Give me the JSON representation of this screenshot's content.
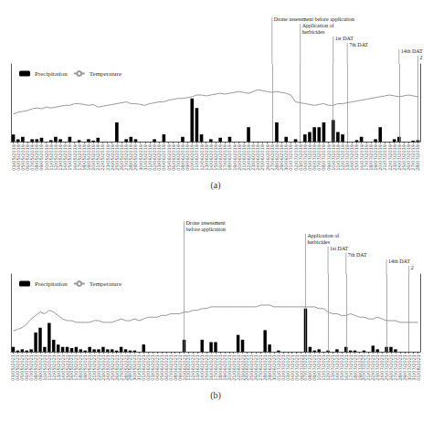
{
  "chart_data": [
    {
      "type": "bar",
      "xlabel": "(a)",
      "legend": "upper left",
      "grid": false,
      "tick_labels": "x",
      "ylim": [
        0,
        16.2
      ],
      "y2lim": [
        -5,
        40
      ],
      "categories": [
        "03/05/2019",
        "04/05/2019",
        "05/05/2019",
        "06/05/2019",
        "07/05/2019",
        "08/05/2019",
        "09/05/2019",
        "10/05/2019",
        "11/05/2019",
        "12/05/2019",
        "13/05/2019",
        "14/05/2019",
        "15/05/2019",
        "16/05/2019",
        "17/05/2019",
        "18/05/2019",
        "19/05/2019",
        "20/05/2019",
        "21/05/2019",
        "22/05/2019",
        "23/05/2019",
        "24/05/2019",
        "25/05/2019",
        "26/05/2019",
        "27/05/2019",
        "28/05/2019",
        "29/05/2019",
        "30/05/2019",
        "31/05/2019",
        "01/06/2019",
        "02/06/2019",
        "03/06/2019",
        "04/06/2019",
        "05/06/2019",
        "06/06/2019",
        "07/06/2019",
        "08/06/2019",
        "09/06/2019",
        "10/06/2019",
        "11/06/2019",
        "12/06/2019",
        "13/06/2019",
        "14/06/2019",
        "15/06/2019",
        "16/06/2019",
        "17/06/2019",
        "18/06/2019",
        "19/06/2019",
        "20/06/2019",
        "21/06/2019",
        "22/06/2019",
        "23/06/2019",
        "24/06/2019",
        "25/06/2019",
        "26/06/2019",
        "27/06/2019",
        "28/06/2019",
        "29/06/2019",
        "30/06/2019",
        "01/07/2019",
        "02/07/2019",
        "03/07/2019",
        "04/07/2019",
        "05/07/2019",
        "06/07/2019",
        "07/07/2019",
        "08/07/2019",
        "09/07/2019",
        "10/07/2019",
        "11/07/2019",
        "12/07/2019",
        "13/07/2019",
        "14/07/2019",
        "15/07/2019",
        "16/07/2019",
        "17/07/2019",
        "18/07/2019",
        "19/07/2019",
        "20/07/2019",
        "21/07/2019",
        "22/07/2019",
        "23/07/2019",
        "24/07/2019",
        "25/07/2019",
        "26/07/2019",
        "27/07/2019",
        "28/07/2019"
      ],
      "series": [
        {
          "name": "Precipitation",
          "type": "bar",
          "color": "#000000",
          "values": [
            1.5,
            0.5,
            1,
            0,
            0.5,
            0.5,
            0.8,
            0,
            0.3,
            1,
            0.5,
            0,
            1,
            0,
            0.3,
            0,
            0.5,
            0.2,
            0.8,
            0,
            0,
            0,
            4,
            0,
            0.5,
            1,
            0.5,
            0,
            0,
            0,
            0.5,
            0,
            1.5,
            0,
            0,
            0,
            1,
            0,
            9,
            7,
            1.5,
            0,
            0.5,
            0,
            0.8,
            0,
            1,
            0,
            0,
            0,
            3,
            0,
            0,
            0,
            0,
            0,
            4,
            0,
            1,
            0,
            0.5,
            0,
            1.5,
            2,
            3,
            3,
            4,
            0,
            4.5,
            2,
            1.5,
            0,
            0,
            0.3,
            1,
            0,
            0,
            0.5,
            3,
            0,
            0,
            0.5,
            1,
            0,
            0,
            0.2,
            0.3
          ]
        },
        {
          "name": "Temperature",
          "type": "line",
          "color": "#999999",
          "axis": "y2",
          "values": [
            11,
            12,
            12.5,
            13,
            14,
            14.5,
            14,
            15,
            14.5,
            15,
            15.5,
            16,
            16,
            17,
            17,
            16.5,
            16,
            16.5,
            15,
            15.5,
            16,
            16.5,
            17,
            17.5,
            18,
            17,
            17,
            16.5,
            16,
            17,
            17.5,
            18,
            18,
            19,
            19.5,
            20,
            20,
            20.5,
            21,
            22,
            22,
            21.5,
            22,
            22.5,
            23,
            22.5,
            23,
            23.5,
            24,
            23.5,
            23,
            24,
            25,
            24.5,
            24,
            23.5,
            24,
            23.5,
            23,
            22,
            18,
            17.5,
            17,
            16.5,
            16,
            16.5,
            17,
            16,
            16,
            17,
            17,
            17.5,
            18,
            18.5,
            19,
            19.5,
            20,
            20.5,
            21,
            21.5,
            22,
            21.5,
            21,
            21.5,
            22,
            21.5,
            21
          ]
        }
      ],
      "annotations": [
        {
          "x": "27/06/2019",
          "text": "Drone assessment before application"
        },
        {
          "x": "03/07/2019",
          "text": "Application of\nherbicides"
        },
        {
          "x": "10/07/2019",
          "text": "1st DAT"
        },
        {
          "x": "13/07/2019",
          "text": "7th DAT"
        },
        {
          "x": "24/07/2019",
          "text": "14th DAT"
        },
        {
          "x": "28/07/2019",
          "text": "2"
        }
      ]
    },
    {
      "type": "bar",
      "xlabel": "(b)",
      "legend": "upper left",
      "grid": false,
      "tick_labels": "x",
      "ylim": [
        0,
        32.4
      ],
      "y2lim": [
        -5,
        40
      ],
      "categories": [
        "03/05/2021",
        "04/05/2021",
        "05/05/2021",
        "06/05/2021",
        "07/05/2021",
        "08/05/2021",
        "09/05/2021",
        "10/05/2021",
        "11/05/2021",
        "12/05/2021",
        "13/05/2021",
        "14/05/2021",
        "15/05/2021",
        "16/05/2021",
        "17/05/2021",
        "18/05/2021",
        "19/05/2021",
        "20/05/2021",
        "21/05/2021",
        "22/05/2021",
        "23/05/2021",
        "24/05/2021",
        "25/05/2021",
        "26/05/2021",
        "27/05/2021",
        "28/05/2021",
        "29/05/2021",
        "30/05/2021",
        "31/05/2021",
        "01/06/2021",
        "02/06/2021",
        "03/06/2021",
        "04/06/2021",
        "05/06/2021",
        "06/06/2021",
        "07/06/2021",
        "08/06/2021",
        "09/06/2021",
        "10/06/2021",
        "11/06/2021",
        "12/06/2021",
        "13/06/2021",
        "14/06/2021",
        "15/06/2021",
        "16/06/2021",
        "17/06/2021",
        "18/06/2021",
        "19/06/2021",
        "20/06/2021",
        "21/06/2021",
        "22/06/2021",
        "23/06/2021",
        "24/06/2021",
        "25/06/2021",
        "26/06/2021",
        "27/06/2021",
        "28/06/2021",
        "29/06/2021",
        "30/06/2021",
        "01/07/2021",
        "02/07/2021",
        "03/07/2021",
        "04/07/2021",
        "05/07/2021",
        "06/07/2021",
        "07/07/2021",
        "08/07/2021",
        "09/07/2021",
        "10/07/2021",
        "11/07/2021",
        "12/07/2021",
        "13/07/2021",
        "14/07/2021",
        "15/07/2021",
        "16/07/2021",
        "17/07/2021",
        "18/07/2021",
        "19/07/2021",
        "20/07/2021",
        "21/07/2021",
        "22/07/2021",
        "23/07/2021",
        "24/07/2021",
        "25/07/2021",
        "26/07/2021",
        "27/07/2021",
        "28/07/2021",
        "29/07/2021",
        "30/07/2021",
        "31/07/2021",
        "01/08/2021"
      ],
      "series": [
        {
          "name": "Precipitation",
          "type": "bar",
          "color": "#000000",
          "values": [
            2,
            0.5,
            1,
            0.5,
            1,
            8,
            10,
            2,
            12,
            5,
            3,
            2,
            2,
            1.5,
            2,
            1,
            0.5,
            2,
            1,
            1,
            2,
            1,
            1,
            0.5,
            2,
            1,
            0.5,
            0.5,
            0,
            3,
            0,
            0,
            0,
            0,
            0,
            0,
            0,
            0,
            5,
            0,
            0,
            0,
            5,
            0,
            4,
            4,
            0,
            0,
            0,
            0,
            7,
            5,
            0,
            0,
            0,
            0,
            9,
            3,
            0,
            0.5,
            0,
            0,
            0,
            0,
            0,
            18,
            2,
            0.5,
            1,
            0,
            0.5,
            0,
            1,
            0,
            2,
            0.5,
            0.5,
            0,
            0.5,
            0,
            2.5,
            1,
            0,
            2,
            2,
            1,
            0,
            0,
            0,
            0,
            0
          ]
        },
        {
          "name": "Temperature",
          "type": "line",
          "color": "#999999",
          "axis": "y2",
          "values": [
            7,
            8,
            9,
            11,
            14,
            16,
            18,
            17,
            19,
            18,
            16,
            14,
            13,
            13,
            12,
            12,
            12,
            12,
            13,
            13,
            12,
            12,
            12,
            13,
            14,
            13,
            13,
            14,
            13,
            14,
            15,
            15,
            15,
            16,
            16,
            17,
            17,
            17,
            18,
            18,
            19,
            19,
            20,
            20,
            21,
            21,
            21,
            21,
            21,
            21,
            21,
            21,
            21,
            21,
            21,
            22,
            22,
            22,
            21,
            21,
            21,
            21,
            21,
            21,
            21,
            21,
            21,
            21,
            20,
            20,
            18,
            17,
            17,
            16,
            16,
            17,
            16,
            15,
            15,
            14,
            14,
            15,
            14,
            13,
            13,
            13,
            12,
            12,
            12,
            12,
            12
          ]
        }
      ],
      "annotations": [
        {
          "x": "10/06/2021",
          "text": "Drone assessment\nbefore application"
        },
        {
          "x": "07/07/2021",
          "text": "Application of\nherbicides"
        },
        {
          "x": "12/07/2021",
          "text": "1st DAT"
        },
        {
          "x": "16/07/2021",
          "text": "7th DAT"
        },
        {
          "x": "25/07/2021",
          "text": "14th DAT"
        },
        {
          "x": "30/07/2021",
          "text": "2"
        }
      ]
    }
  ]
}
